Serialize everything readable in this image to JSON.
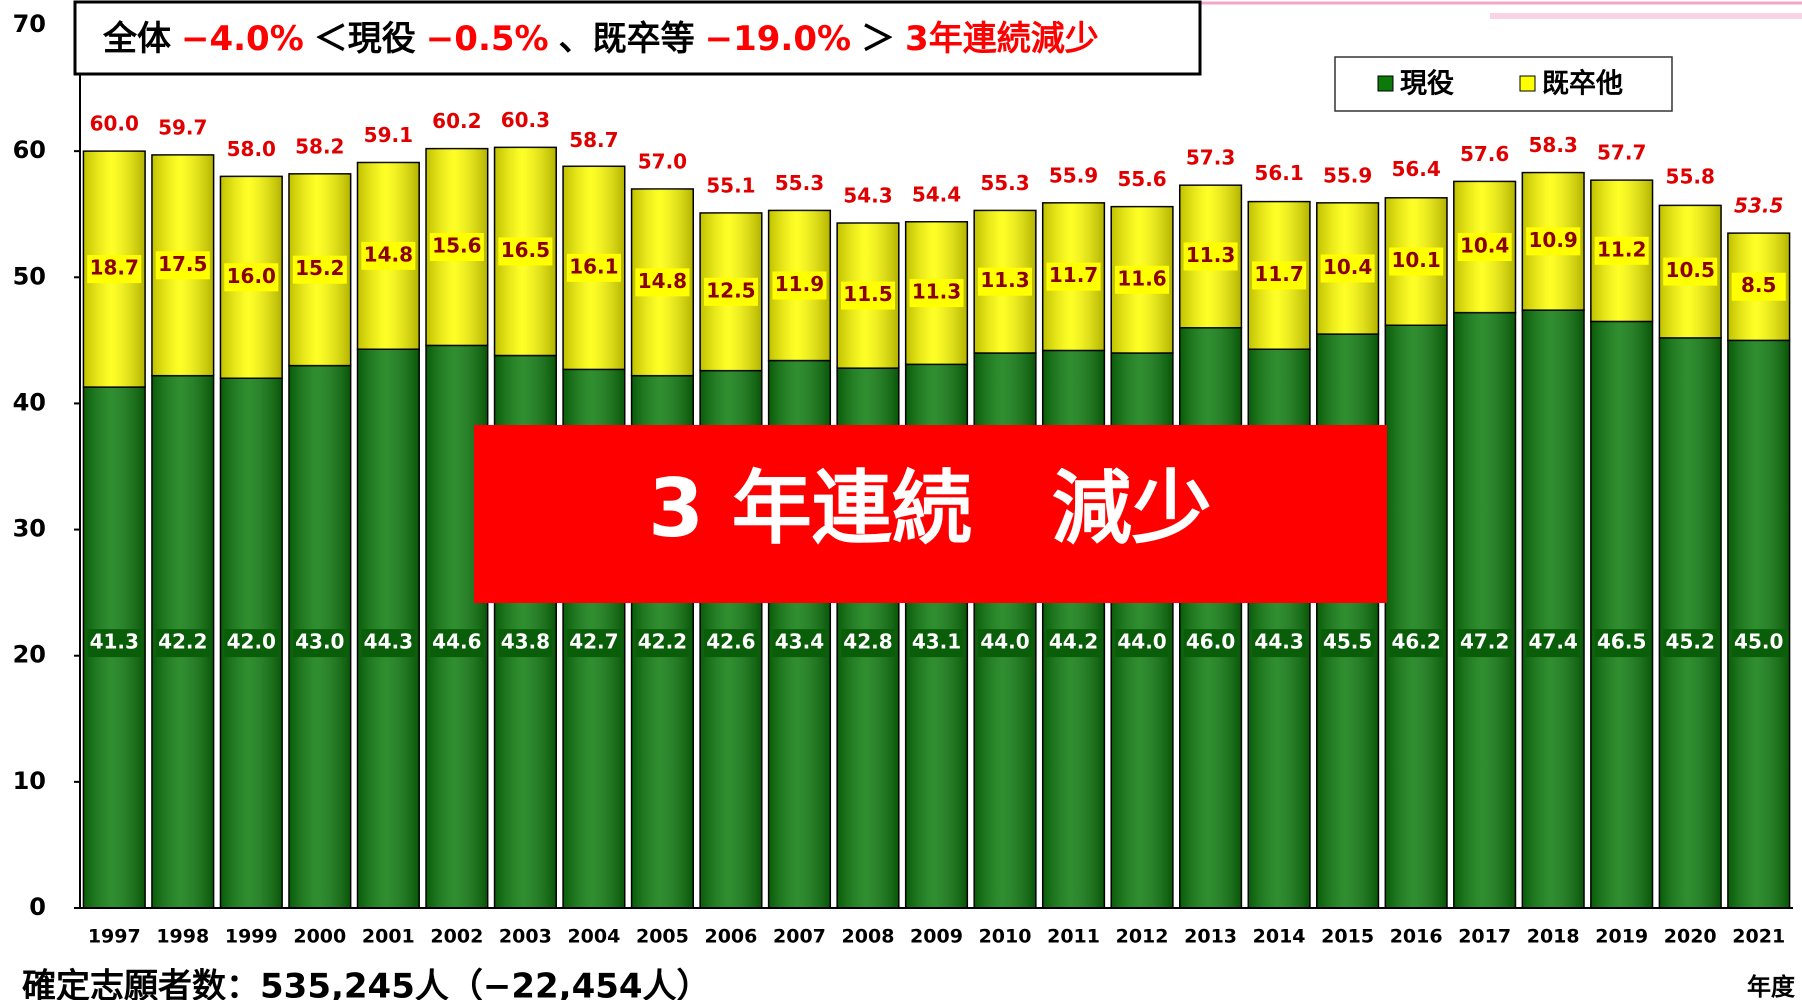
{
  "chart_data": {
    "type": "stacked_bar",
    "title_segments": [
      {
        "text": "全体",
        "color": "#000000"
      },
      {
        "text": "−4.0%",
        "color": "#ff0000"
      },
      {
        "text": "＜現役",
        "color": "#000000"
      },
      {
        "text": "−0.5%",
        "color": "#ff0000"
      },
      {
        "text": "、既卒等",
        "color": "#000000"
      },
      {
        "text": "−19.0%",
        "color": "#ff0000"
      },
      {
        "text": "＞",
        "color": "#000000"
      },
      {
        "text": "3年連続減少",
        "color": "#ff0000"
      }
    ],
    "banner": "3 年連続　減少",
    "footnote": "確定志願者数：535,245人（−22,454人）",
    "x_unit": "年度",
    "categories": [
      "1997",
      "1998",
      "1999",
      "2000",
      "2001",
      "2002",
      "2003",
      "2004",
      "2005",
      "2006",
      "2007",
      "2008",
      "2009",
      "2010",
      "2011",
      "2012",
      "2013",
      "2014",
      "2015",
      "2016",
      "2017",
      "2018",
      "2019",
      "2020",
      "2021"
    ],
    "series": [
      {
        "name": "現役",
        "color": "#0b7a0b",
        "values": [
          41.3,
          42.2,
          42.0,
          43.0,
          44.3,
          44.6,
          43.8,
          42.7,
          42.2,
          42.6,
          43.4,
          42.8,
          43.1,
          44.0,
          44.2,
          44.0,
          46.0,
          44.3,
          45.5,
          46.2,
          47.2,
          47.4,
          46.5,
          45.2,
          45.0
        ],
        "value_labels": [
          "41.3",
          "42.2",
          "42.0",
          "43.0",
          "44.3",
          "44.6",
          "43.8",
          "42.7",
          "42.2",
          "42.6",
          "43.4",
          "42.8",
          "43.1",
          "44.0",
          "44.2",
          "44.0",
          "46.0",
          "44.3",
          "45.5",
          "46.2",
          "47.2",
          "47.4",
          "46.5",
          "45.2",
          "45.0"
        ]
      },
      {
        "name": "既卒他",
        "color": "#ffff00",
        "values": [
          18.7,
          17.5,
          16.0,
          15.2,
          14.8,
          15.6,
          16.5,
          16.1,
          14.8,
          12.5,
          11.9,
          11.5,
          11.3,
          11.3,
          11.7,
          11.6,
          11.3,
          11.7,
          10.4,
          10.1,
          10.4,
          10.9,
          11.2,
          10.5,
          8.5
        ],
        "value_labels": [
          "18.7",
          "17.5",
          "16.0",
          "15.2",
          "14.8",
          "15.6",
          "16.5",
          "16.1",
          "14.8",
          "12.5",
          "11.9",
          "11.5",
          "11.3",
          "11.3",
          "11.7",
          "11.6",
          "11.3",
          "11.7",
          "10.4",
          "10.1",
          "10.4",
          "10.9",
          "11.2",
          "10.5",
          "8.5"
        ]
      }
    ],
    "totals": [
      60.0,
      59.7,
      58.0,
      58.2,
      59.1,
      60.2,
      60.3,
      58.7,
      57.0,
      55.1,
      55.3,
      54.3,
      54.4,
      55.3,
      55.9,
      55.6,
      57.3,
      56.1,
      55.9,
      56.4,
      57.6,
      58.3,
      57.7,
      55.8,
      53.5
    ],
    "total_labels": [
      "60.0",
      "59.7",
      "58.0",
      "58.2",
      "59.1",
      "60.2",
      "60.3",
      "58.7",
      "57.0",
      "55.1",
      "55.3",
      "54.3",
      "54.4",
      "55.3",
      "55.9",
      "55.6",
      "57.3",
      "56.1",
      "55.9",
      "56.4",
      "57.6",
      "58.3",
      "57.7",
      "55.8",
      "53.5"
    ],
    "ylim": [
      0,
      70
    ],
    "yticks": [
      0,
      10,
      20,
      30,
      40,
      50,
      60,
      70
    ],
    "legend": "top-right"
  }
}
